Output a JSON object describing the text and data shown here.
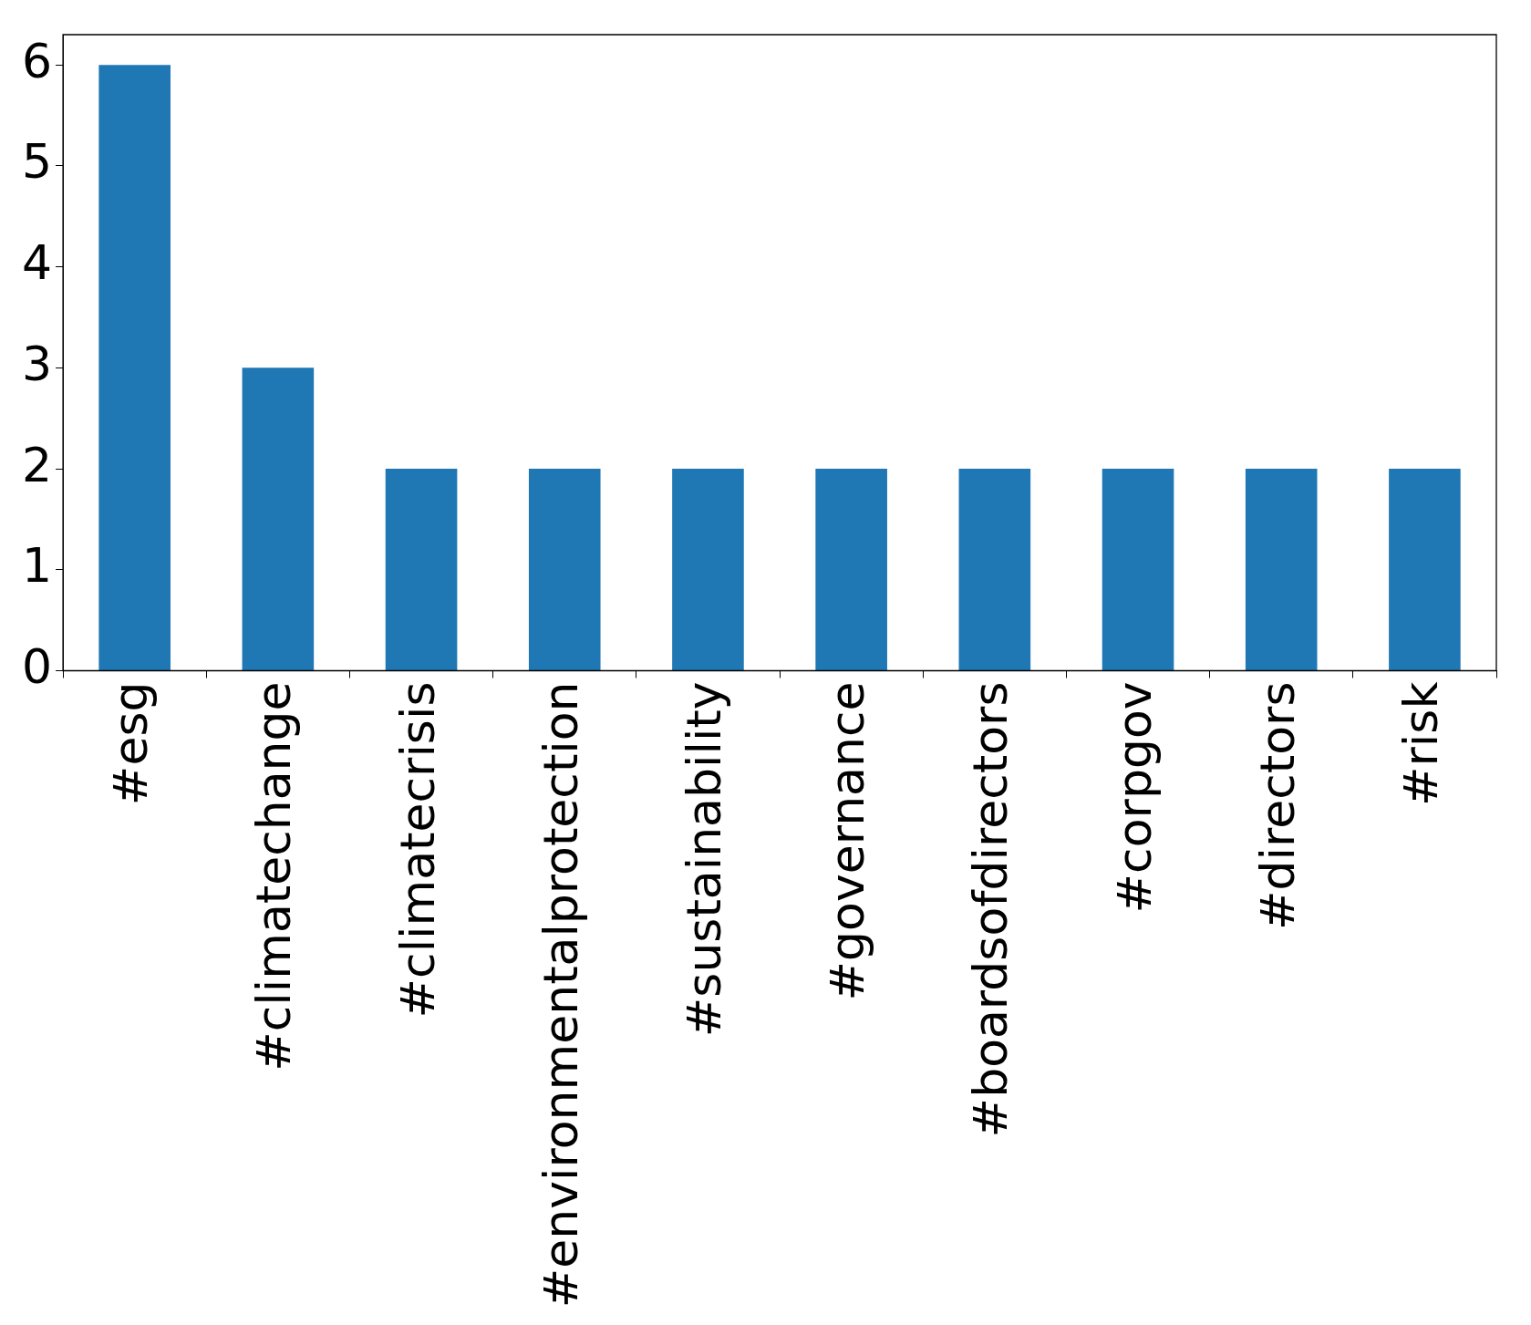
{
  "chart_data": {
    "type": "bar",
    "categories": [
      "#esg",
      "#climatechange",
      "#climatecrisis",
      "#environmentalprotection",
      "#sustainability",
      "#governance",
      "#boardsofdirectors",
      "#corpgov",
      "#directors",
      "#risk"
    ],
    "values": [
      6,
      3,
      2,
      2,
      2,
      2,
      2,
      2,
      2,
      2
    ],
    "color": "#1f77b4",
    "ylim": [
      0,
      6.3
    ],
    "yticks": [
      0,
      1,
      2,
      3,
      4,
      5,
      6
    ],
    "grid": false,
    "legend": false
  }
}
